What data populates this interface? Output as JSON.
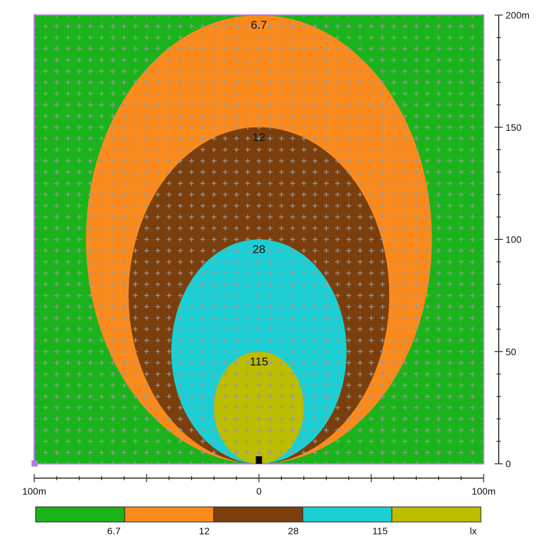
{
  "chart_data": {
    "type": "heatmap",
    "unit": "lx",
    "x_axis": {
      "range": [
        -100,
        100
      ],
      "tick_labels": [
        {
          "value": -100,
          "label": "100m"
        },
        {
          "value": 0,
          "label": "0"
        },
        {
          "value": 100,
          "label": "100m"
        }
      ]
    },
    "y_axis": {
      "range": [
        0,
        200
      ],
      "tick_labels": [
        {
          "value": 0,
          "label": "0"
        },
        {
          "value": 50,
          "label": "50"
        },
        {
          "value": 100,
          "label": "100"
        },
        {
          "value": 150,
          "label": "150"
        },
        {
          "value": 200,
          "label": "200m"
        }
      ]
    },
    "source_position": {
      "x": 0,
      "y": 0
    },
    "background_color": "#1bb31b",
    "contours": [
      {
        "label": "6.7",
        "level": 6.7,
        "color": "#fb8a1d",
        "half_width": 77,
        "height": 200
      },
      {
        "label": "12",
        "level": 12,
        "color": "#7a3f0c",
        "half_width": 58,
        "height": 150
      },
      {
        "label": "28",
        "level": 28,
        "color": "#1ccfd4",
        "half_width": 39,
        "height": 100
      },
      {
        "label": "115",
        "level": 115,
        "color": "#bdbd00",
        "half_width": 20,
        "height": 50
      }
    ],
    "legend": {
      "position": "bottom",
      "segments": [
        {
          "color": "#1bb31b"
        },
        {
          "color": "#fb8a1d"
        },
        {
          "color": "#7a3f0c"
        },
        {
          "color": "#1ccfd4"
        },
        {
          "color": "#bdbd00"
        }
      ],
      "labels": [
        "6.7",
        "12",
        "28",
        "115",
        "lx"
      ]
    },
    "grid_points": "on"
  }
}
